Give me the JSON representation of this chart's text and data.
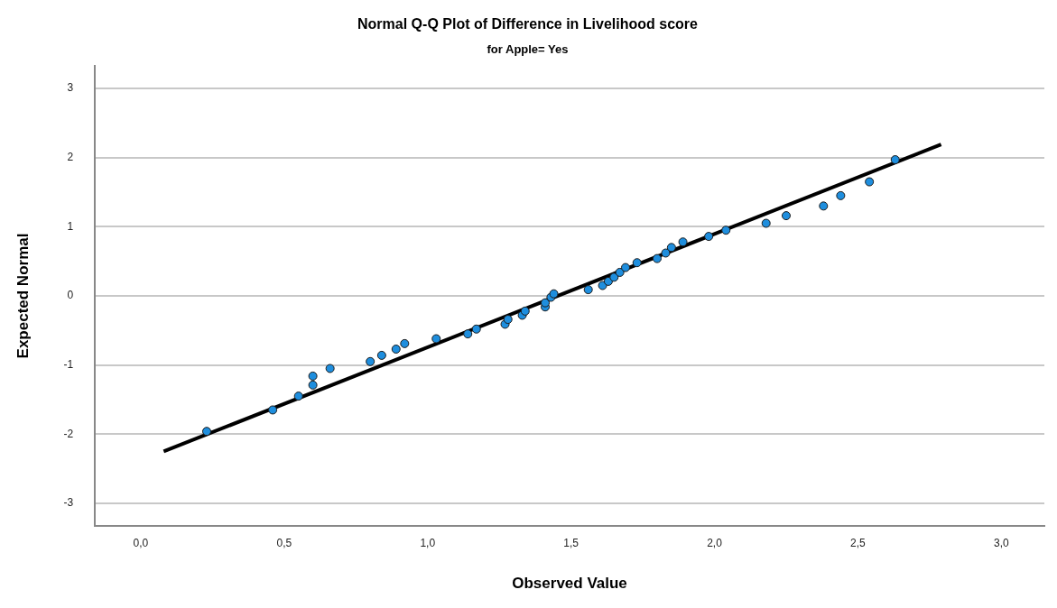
{
  "chart_data": {
    "type": "scatter",
    "title": "Normal Q-Q Plot of Difference in Livelihood score",
    "subtitle": "for Apple= Yes",
    "xlabel": "Observed Value",
    "ylabel": "Expected Normal",
    "xlim": [
      -0.16,
      3.15
    ],
    "ylim": [
      -3.33,
      3.33
    ],
    "xticks": [
      {
        "value": 0,
        "label": "0,0"
      },
      {
        "value": 0.5,
        "label": "0,5"
      },
      {
        "value": 1,
        "label": "1,0"
      },
      {
        "value": 1.5,
        "label": "1,5"
      },
      {
        "value": 2,
        "label": "2,0"
      },
      {
        "value": 2.5,
        "label": "2,5"
      },
      {
        "value": 3,
        "label": "3,0"
      }
    ],
    "yticks": [
      -3,
      -2,
      -1,
      0,
      1,
      2,
      3
    ],
    "grid": "y",
    "legend": false,
    "series": [
      {
        "color": "#1e8ede",
        "marker": "circle",
        "x": [
          0.23,
          0.46,
          0.55,
          0.6,
          0.6,
          0.66,
          0.8,
          0.84,
          0.89,
          0.92,
          1.03,
          1.14,
          1.17,
          1.27,
          1.28,
          1.33,
          1.34,
          1.41,
          1.41,
          1.43,
          1.44,
          1.56,
          1.61,
          1.63,
          1.65,
          1.67,
          1.69,
          1.73,
          1.8,
          1.83,
          1.85,
          1.89,
          1.98,
          2.04,
          2.18,
          2.25,
          2.38,
          2.44,
          2.54,
          2.63
        ],
        "values": [
          -1.96,
          -1.65,
          -1.45,
          -1.29,
          -1.16,
          -1.05,
          -0.95,
          -0.86,
          -0.77,
          -0.69,
          -0.62,
          -0.55,
          -0.48,
          -0.41,
          -0.34,
          -0.28,
          -0.22,
          -0.16,
          -0.1,
          -0.02,
          0.03,
          0.09,
          0.15,
          0.21,
          0.27,
          0.34,
          0.41,
          0.48,
          0.54,
          0.62,
          0.7,
          0.78,
          0.86,
          0.95,
          1.05,
          1.16,
          1.3,
          1.45,
          1.65,
          1.97
        ]
      },
      {
        "type": "line",
        "color": "#000000",
        "marker": "none",
        "line_style": "solid",
        "x": [
          0.08,
          2.79
        ],
        "values": [
          -2.25,
          2.19
        ]
      }
    ]
  }
}
